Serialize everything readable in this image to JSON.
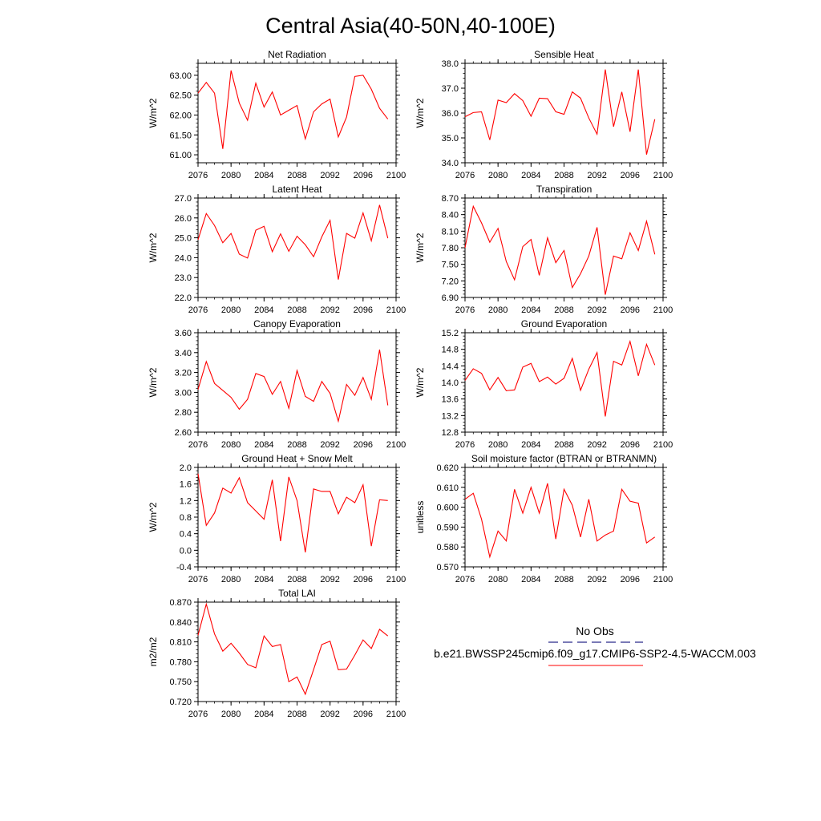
{
  "figure": {
    "title": "Central Asia(40-50N,40-100E)"
  },
  "legend": {
    "obs_label": "No Obs",
    "obs_color": "#2a2a8a",
    "model_label": "b.e21.BWSSP245cmip6.f09_g17.CMIP6-SSP2-4.5-WACCM.003",
    "model_color": "#ff0000"
  },
  "chart_data": [
    {
      "type": "line",
      "title": "Net Radiation",
      "ylabel": "W/m^2",
      "xlim": [
        2076,
        2100
      ],
      "ylim": [
        60.8,
        63.3
      ],
      "yticks": [
        61.0,
        61.5,
        62.0,
        62.5,
        63.0
      ],
      "ytick_labels": [
        "61.00",
        "61.50",
        "62.00",
        "62.50",
        "63.00"
      ],
      "xticks": [
        2076,
        2080,
        2084,
        2088,
        2092,
        2096,
        2100
      ],
      "x": [
        2076,
        2077,
        2078,
        2079,
        2080,
        2081,
        2082,
        2083,
        2084,
        2085,
        2086,
        2087,
        2088,
        2089,
        2090,
        2091,
        2092,
        2093,
        2094,
        2095,
        2096,
        2097,
        2098,
        2099
      ],
      "values": [
        62.55,
        62.82,
        62.55,
        61.15,
        63.12,
        62.3,
        61.87,
        62.8,
        62.2,
        62.58,
        62.0,
        62.12,
        62.24,
        61.4,
        62.08,
        62.28,
        62.4,
        61.45,
        61.95,
        62.97,
        63.0,
        62.65,
        62.17,
        61.9
      ],
      "color": "#ff0000"
    },
    {
      "type": "line",
      "title": "Sensible Heat",
      "ylabel": "W/m^2",
      "xlim": [
        2076,
        2100
      ],
      "ylim": [
        34.0,
        38.0
      ],
      "yticks": [
        34.0,
        35.0,
        36.0,
        37.0,
        38.0
      ],
      "ytick_labels": [
        "34.0",
        "35.0",
        "36.0",
        "37.0",
        "38.0"
      ],
      "xticks": [
        2076,
        2080,
        2084,
        2088,
        2092,
        2096,
        2100
      ],
      "x": [
        2076,
        2077,
        2078,
        2079,
        2080,
        2081,
        2082,
        2083,
        2084,
        2085,
        2086,
        2087,
        2088,
        2089,
        2090,
        2091,
        2092,
        2093,
        2094,
        2095,
        2096,
        2097,
        2098,
        2099
      ],
      "values": [
        35.85,
        36.02,
        36.05,
        34.92,
        36.52,
        36.42,
        36.78,
        36.5,
        35.87,
        36.6,
        36.58,
        36.05,
        35.95,
        36.85,
        36.6,
        35.8,
        35.15,
        37.75,
        35.45,
        36.85,
        35.25,
        37.75,
        34.33,
        35.75
      ],
      "color": "#ff0000"
    },
    {
      "type": "line",
      "title": "Latent Heat",
      "ylabel": "W/m^2",
      "xlim": [
        2076,
        2100
      ],
      "ylim": [
        22.0,
        27.0
      ],
      "yticks": [
        22.0,
        23.0,
        24.0,
        25.0,
        26.0,
        27.0
      ],
      "ytick_labels": [
        "22.0",
        "23.0",
        "24.0",
        "25.0",
        "26.0",
        "27.0"
      ],
      "xticks": [
        2076,
        2080,
        2084,
        2088,
        2092,
        2096,
        2100
      ],
      "x": [
        2076,
        2077,
        2078,
        2079,
        2080,
        2081,
        2082,
        2083,
        2084,
        2085,
        2086,
        2087,
        2088,
        2089,
        2090,
        2091,
        2092,
        2093,
        2094,
        2095,
        2096,
        2097,
        2098,
        2099
      ],
      "values": [
        24.9,
        26.22,
        25.62,
        24.75,
        25.22,
        24.18,
        23.98,
        25.38,
        25.58,
        24.3,
        25.2,
        24.32,
        25.08,
        24.65,
        24.05,
        25.05,
        25.88,
        22.9,
        25.22,
        24.98,
        26.25,
        24.85,
        26.65,
        24.98
      ],
      "color": "#ff0000"
    },
    {
      "type": "line",
      "title": "Transpiration",
      "ylabel": "W/m^2",
      "xlim": [
        2076,
        2100
      ],
      "ylim": [
        6.9,
        8.7
      ],
      "yticks": [
        6.9,
        7.2,
        7.5,
        7.8,
        8.1,
        8.4,
        8.7
      ],
      "ytick_labels": [
        "6.90",
        "7.20",
        "7.50",
        "7.80",
        "8.10",
        "8.40",
        "8.70"
      ],
      "xticks": [
        2076,
        2080,
        2084,
        2088,
        2092,
        2096,
        2100
      ],
      "x": [
        2076,
        2077,
        2078,
        2079,
        2080,
        2081,
        2082,
        2083,
        2084,
        2085,
        2086,
        2087,
        2088,
        2089,
        2090,
        2091,
        2092,
        2093,
        2094,
        2095,
        2096,
        2097,
        2098,
        2099
      ],
      "values": [
        7.8,
        8.55,
        8.25,
        7.9,
        8.15,
        7.55,
        7.22,
        7.82,
        7.95,
        7.3,
        7.98,
        7.53,
        7.75,
        7.08,
        7.33,
        7.65,
        8.17,
        6.95,
        7.65,
        7.6,
        8.07,
        7.75,
        8.28,
        7.68
      ],
      "color": "#ff0000"
    },
    {
      "type": "line",
      "title": "Canopy Evaporation",
      "ylabel": "W/m^2",
      "xlim": [
        2076,
        2100
      ],
      "ylim": [
        2.6,
        3.6
      ],
      "yticks": [
        2.6,
        2.8,
        3.0,
        3.2,
        3.4,
        3.6
      ],
      "ytick_labels": [
        "2.60",
        "2.80",
        "3.00",
        "3.20",
        "3.40",
        "3.60"
      ],
      "xticks": [
        2076,
        2080,
        2084,
        2088,
        2092,
        2096,
        2100
      ],
      "x": [
        2076,
        2077,
        2078,
        2079,
        2080,
        2081,
        2082,
        2083,
        2084,
        2085,
        2086,
        2087,
        2088,
        2089,
        2090,
        2091,
        2092,
        2093,
        2094,
        2095,
        2096,
        2097,
        2098,
        2099
      ],
      "values": [
        3.03,
        3.31,
        3.09,
        3.02,
        2.95,
        2.83,
        2.93,
        3.19,
        3.16,
        2.98,
        3.11,
        2.84,
        3.22,
        2.96,
        2.91,
        3.11,
        2.99,
        2.71,
        3.08,
        2.97,
        3.15,
        2.93,
        3.43,
        2.87
      ],
      "color": "#ff0000"
    },
    {
      "type": "line",
      "title": "Ground Evaporation",
      "ylabel": "W/m^2",
      "xlim": [
        2076,
        2100
      ],
      "ylim": [
        12.8,
        15.2
      ],
      "yticks": [
        12.8,
        13.2,
        13.6,
        14.0,
        14.4,
        14.8,
        15.2
      ],
      "ytick_labels": [
        "12.8",
        "13.2",
        "13.6",
        "14.0",
        "14.4",
        "14.8",
        "15.2"
      ],
      "xticks": [
        2076,
        2080,
        2084,
        2088,
        2092,
        2096,
        2100
      ],
      "x": [
        2076,
        2077,
        2078,
        2079,
        2080,
        2081,
        2082,
        2083,
        2084,
        2085,
        2086,
        2087,
        2088,
        2089,
        2090,
        2091,
        2092,
        2093,
        2094,
        2095,
        2096,
        2097,
        2098,
        2099
      ],
      "values": [
        14.05,
        14.33,
        14.22,
        13.82,
        14.12,
        13.8,
        13.82,
        14.37,
        14.46,
        14.02,
        14.13,
        13.96,
        14.1,
        14.58,
        13.81,
        14.32,
        14.72,
        13.18,
        14.51,
        14.42,
        14.99,
        14.16,
        14.92,
        14.42
      ],
      "color": "#ff0000"
    },
    {
      "type": "line",
      "title": "Ground Heat + Snow Melt",
      "ylabel": "W/m^2",
      "xlim": [
        2076,
        2100
      ],
      "ylim": [
        -0.4,
        2.0
      ],
      "yticks": [
        -0.4,
        0.0,
        0.4,
        0.8,
        1.2,
        1.6,
        2.0
      ],
      "ytick_labels": [
        "-0.4",
        "0.0",
        "0.4",
        "0.8",
        "1.2",
        "1.6",
        "2.0"
      ],
      "xticks": [
        2076,
        2080,
        2084,
        2088,
        2092,
        2096,
        2100
      ],
      "x": [
        2076,
        2077,
        2078,
        2079,
        2080,
        2081,
        2082,
        2083,
        2084,
        2085,
        2086,
        2087,
        2088,
        2089,
        2090,
        2091,
        2092,
        2093,
        2094,
        2095,
        2096,
        2097,
        2098,
        2099
      ],
      "values": [
        1.85,
        0.6,
        0.9,
        1.5,
        1.38,
        1.75,
        1.15,
        0.95,
        0.75,
        1.7,
        0.22,
        1.77,
        1.2,
        -0.05,
        1.48,
        1.42,
        1.42,
        0.88,
        1.28,
        1.15,
        1.58,
        0.1,
        1.22,
        1.2
      ],
      "color": "#ff0000"
    },
    {
      "type": "line",
      "title": "Soil moisture factor (BTRAN or BTRANMN)",
      "ylabel": "unitless",
      "xlim": [
        2076,
        2100
      ],
      "ylim": [
        0.57,
        0.62
      ],
      "yticks": [
        0.57,
        0.58,
        0.59,
        0.6,
        0.61,
        0.62
      ],
      "ytick_labels": [
        "0.570",
        "0.580",
        "0.590",
        "0.600",
        "0.610",
        "0.620"
      ],
      "xticks": [
        2076,
        2080,
        2084,
        2088,
        2092,
        2096,
        2100
      ],
      "x": [
        2076,
        2077,
        2078,
        2079,
        2080,
        2081,
        2082,
        2083,
        2084,
        2085,
        2086,
        2087,
        2088,
        2089,
        2090,
        2091,
        2092,
        2093,
        2094,
        2095,
        2096,
        2097,
        2098,
        2099
      ],
      "values": [
        0.604,
        0.607,
        0.594,
        0.575,
        0.588,
        0.583,
        0.609,
        0.597,
        0.61,
        0.597,
        0.612,
        0.584,
        0.609,
        0.601,
        0.585,
        0.604,
        0.583,
        0.586,
        0.588,
        0.609,
        0.603,
        0.602,
        0.582,
        0.585
      ],
      "color": "#ff0000"
    },
    {
      "type": "line",
      "title": "Total LAI",
      "ylabel": "m2/m2",
      "xlim": [
        2076,
        2100
      ],
      "ylim": [
        0.72,
        0.87
      ],
      "yticks": [
        0.72,
        0.75,
        0.78,
        0.81,
        0.84,
        0.87
      ],
      "ytick_labels": [
        "0.720",
        "0.750",
        "0.780",
        "0.810",
        "0.840",
        "0.870"
      ],
      "xticks": [
        2076,
        2080,
        2084,
        2088,
        2092,
        2096,
        2100
      ],
      "x": [
        2076,
        2077,
        2078,
        2079,
        2080,
        2081,
        2082,
        2083,
        2084,
        2085,
        2086,
        2087,
        2088,
        2089,
        2090,
        2091,
        2092,
        2093,
        2094,
        2095,
        2096,
        2097,
        2098,
        2099
      ],
      "values": [
        0.82,
        0.867,
        0.822,
        0.796,
        0.808,
        0.793,
        0.776,
        0.771,
        0.819,
        0.803,
        0.806,
        0.75,
        0.757,
        0.731,
        0.768,
        0.806,
        0.811,
        0.768,
        0.769,
        0.79,
        0.813,
        0.8,
        0.829,
        0.819
      ],
      "color": "#ff0000"
    }
  ]
}
